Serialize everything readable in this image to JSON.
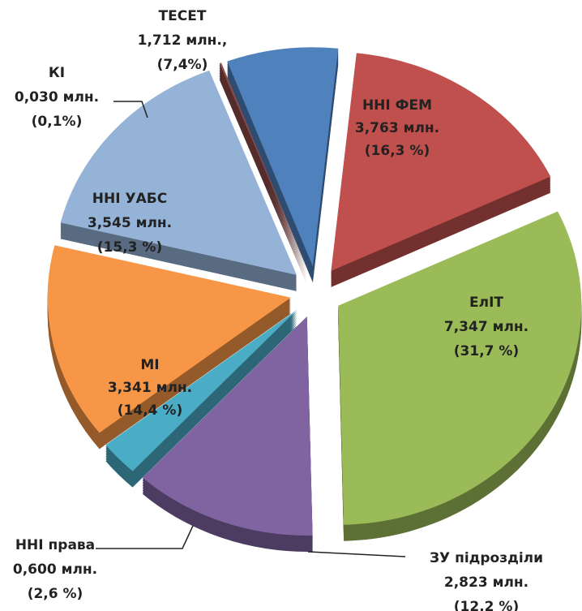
{
  "chart_data": {
    "type": "pie",
    "categories": [
      "ННІ ФЕМ",
      "ЕлІТ",
      "ЗУ підрозділи",
      "ННІ права",
      "МІ",
      "ННІ УАБС",
      "КІ",
      "ТЕСЕТ"
    ],
    "values": [
      3.763,
      7.347,
      2.823,
      0.6,
      3.341,
      3.545,
      0.03,
      1.712
    ],
    "value_labels": [
      "3,763 млн.",
      "7,347 млн.",
      "2,823 млн.",
      "0,600 млн.",
      "3,341 млн.",
      "3,545 млн.",
      "0,030 млн.",
      "1,712 млн.,"
    ],
    "percents": [
      16.3,
      31.7,
      12.2,
      2.6,
      14.4,
      15.3,
      0.1,
      7.4
    ],
    "percent_labels": [
      "(16,3 %)",
      "(31,7 %)",
      "(12,2 %)",
      "(2,6 %)",
      "(14,4 %)",
      "(15,3 %)",
      "(0,1%)",
      "(7,4%)"
    ],
    "colors": [
      "#c0504d",
      "#9bbb59",
      "#8064a2",
      "#4bacc6",
      "#f79646",
      "#95b3d7",
      "#8c4a48",
      "#4f81bd"
    ]
  }
}
